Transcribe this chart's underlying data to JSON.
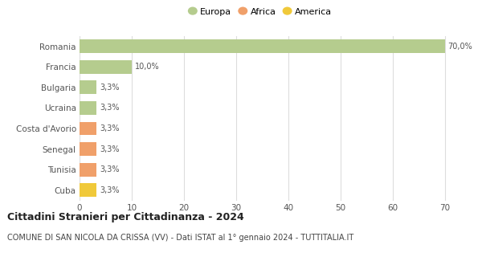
{
  "categories": [
    "Cuba",
    "Tunisia",
    "Senegal",
    "Costa d'Avorio",
    "Ucraina",
    "Bulgaria",
    "Francia",
    "Romania"
  ],
  "values": [
    3.3,
    3.3,
    3.3,
    3.3,
    3.3,
    3.3,
    10.0,
    70.0
  ],
  "colors": [
    "#f0c93a",
    "#f0a06a",
    "#f0a06a",
    "#f0a06a",
    "#b5cc8e",
    "#b5cc8e",
    "#b5cc8e",
    "#b5cc8e"
  ],
  "labels": [
    "3,3%",
    "3,3%",
    "3,3%",
    "3,3%",
    "3,3%",
    "3,3%",
    "10,0%",
    "70,0%"
  ],
  "legend_labels": [
    "Europa",
    "Africa",
    "America"
  ],
  "legend_colors": [
    "#b5cc8e",
    "#f0a06a",
    "#f0c93a"
  ],
  "xlim": [
    0,
    73
  ],
  "xticks": [
    0,
    10,
    20,
    30,
    40,
    50,
    60,
    70
  ],
  "title": "Cittadini Stranieri per Cittadinanza - 2024",
  "subtitle": "COMUNE DI SAN NICOLA DA CRISSA (VV) - Dati ISTAT al 1° gennaio 2024 - TUTTITALIA.IT",
  "title_fontsize": 9,
  "subtitle_fontsize": 7,
  "label_fontsize": 7,
  "tick_fontsize": 7.5,
  "legend_fontsize": 8,
  "background_color": "#ffffff",
  "grid_color": "#dddddd",
  "bar_height": 0.65
}
